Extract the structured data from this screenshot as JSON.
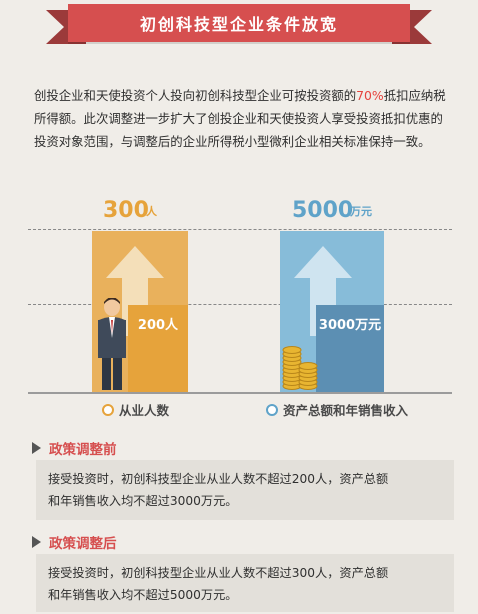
{
  "title": "初创科技型企业条件放宽",
  "intro": {
    "part1": "创投企业和天使投资个人投向初创科技型企业可按投资额的",
    "percent": "70%",
    "part2": "抵扣应纳税所得额。此次调整进一步扩大了创投企业和天使投资人享受投资抵扣优惠的投资对象范围，与调整后的企业所得税小型微利企业相关标准保持一致。"
  },
  "chart": {
    "left": {
      "new_value": "300",
      "new_unit": "人",
      "old_value_label": "200人",
      "legend": "从业人数",
      "color": "#e6a33b"
    },
    "right": {
      "new_value": "5000",
      "new_unit": "万元",
      "old_value_label": "3000万元",
      "legend": "资产总额和年销售收入",
      "color": "#5fa3c9"
    }
  },
  "sections": {
    "before": {
      "title": "政策调整前",
      "line1": "接受投资时，初创科技型企业从业人数不超过200人，资产总额",
      "line2": "和年销售收入均不超过3000万元。"
    },
    "after": {
      "title": "政策调整后",
      "line1": "接受投资时，初创科技型企业从业人数不超过300人，资产总额",
      "line2": "和年销售收入均不超过5000万元。"
    }
  },
  "icons": [
    "person-icon",
    "coin-stack-icon",
    "up-arrow-icon"
  ]
}
